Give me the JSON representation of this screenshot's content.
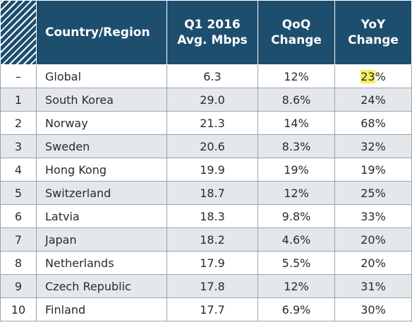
{
  "chart_data": {
    "type": "table",
    "columns": [
      "",
      "Country/Region",
      "Q1 2016 Avg. Mbps",
      "QoQ Change",
      "YoY Change"
    ],
    "header": {
      "country": "Country/Region",
      "avg_line1": "Q1 2016",
      "avg_line2": "Avg. Mbps",
      "qoq_line1": "QoQ",
      "qoq_line2": "Change",
      "yoy_line1": "YoY",
      "yoy_line2": "Change"
    },
    "rows": [
      {
        "rank": "–",
        "country": "Global",
        "avg": "6.3",
        "qoq": "12%",
        "yoy": "23",
        "yoy_suffix": "%"
      },
      {
        "rank": "1",
        "country": "South Korea",
        "avg": "29.0",
        "qoq": "8.6%",
        "yoy": "24",
        "yoy_suffix": "%"
      },
      {
        "rank": "2",
        "country": "Norway",
        "avg": "21.3",
        "qoq": "14%",
        "yoy": "68",
        "yoy_suffix": "%"
      },
      {
        "rank": "3",
        "country": "Sweden",
        "avg": "20.6",
        "qoq": "8.3%",
        "yoy": "32",
        "yoy_suffix": "%"
      },
      {
        "rank": "4",
        "country": "Hong Kong",
        "avg": "19.9",
        "qoq": "19%",
        "yoy": "19",
        "yoy_suffix": "%"
      },
      {
        "rank": "5",
        "country": "Switzerland",
        "avg": "18.7",
        "qoq": "12%",
        "yoy": "25",
        "yoy_suffix": "%"
      },
      {
        "rank": "6",
        "country": "Latvia",
        "avg": "18.3",
        "qoq": "9.8%",
        "yoy": "33",
        "yoy_suffix": "%"
      },
      {
        "rank": "7",
        "country": "Japan",
        "avg": "18.2",
        "qoq": "4.6%",
        "yoy": "20",
        "yoy_suffix": "%"
      },
      {
        "rank": "8",
        "country": "Netherlands",
        "avg": "17.9",
        "qoq": "5.5%",
        "yoy": "20",
        "yoy_suffix": "%"
      },
      {
        "rank": "9",
        "country": "Czech Republic",
        "avg": "17.8",
        "qoq": "12%",
        "yoy": "31",
        "yoy_suffix": "%"
      },
      {
        "rank": "10",
        "country": "Finland",
        "avg": "17.7",
        "qoq": "6.9%",
        "yoy": "30",
        "yoy_suffix": "%"
      }
    ],
    "highlight": {
      "row": 0,
      "column": "yoy",
      "color": "#f6ee5a"
    },
    "colors": {
      "header_bg": "#1d4e6e",
      "stripe_bg": "#e4e8eb",
      "border": "#9aa3aa"
    }
  }
}
